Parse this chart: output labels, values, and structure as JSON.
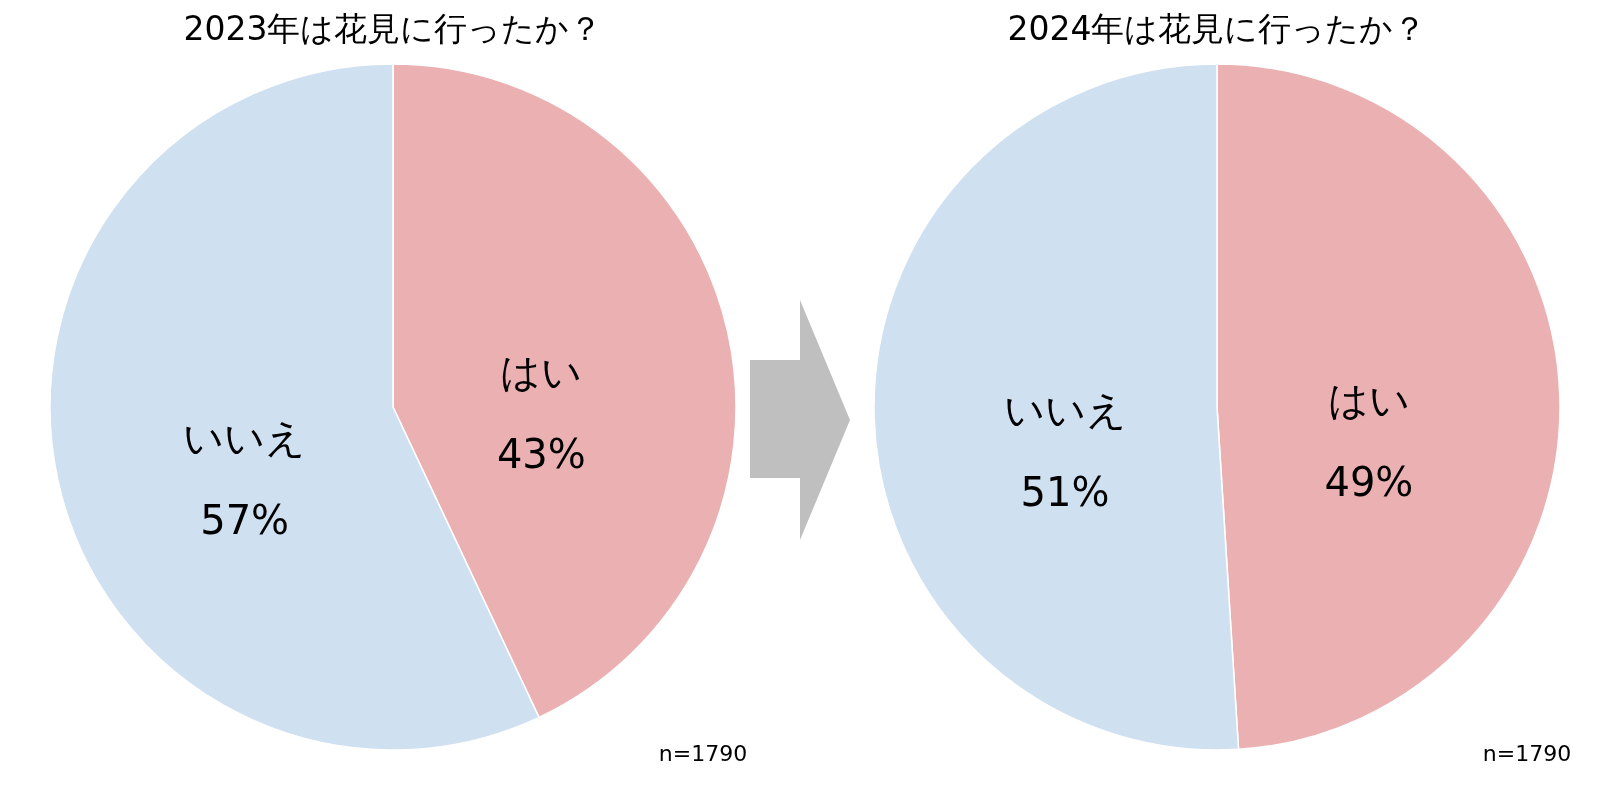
{
  "chart_data": [
    {
      "type": "pie",
      "title": "2023年は花見に行ったか？",
      "categories": [
        "はい",
        "いいえ"
      ],
      "values": [
        43,
        57
      ],
      "colors": [
        "#ebb1b2",
        "#cfe0f1"
      ],
      "data_labels": true,
      "value_labels": [
        "43%",
        "57%"
      ],
      "annotations": [
        "n=1790"
      ]
    },
    {
      "type": "pie",
      "title": "2024年は花見に行ったか？",
      "categories": [
        "はい",
        "いいえ"
      ],
      "values": [
        49,
        51
      ],
      "colors": [
        "#ebb1b2",
        "#cfe0f1"
      ],
      "data_labels": true,
      "value_labels": [
        "49%",
        "51%"
      ],
      "annotations": [
        "n=1790"
      ]
    }
  ]
}
